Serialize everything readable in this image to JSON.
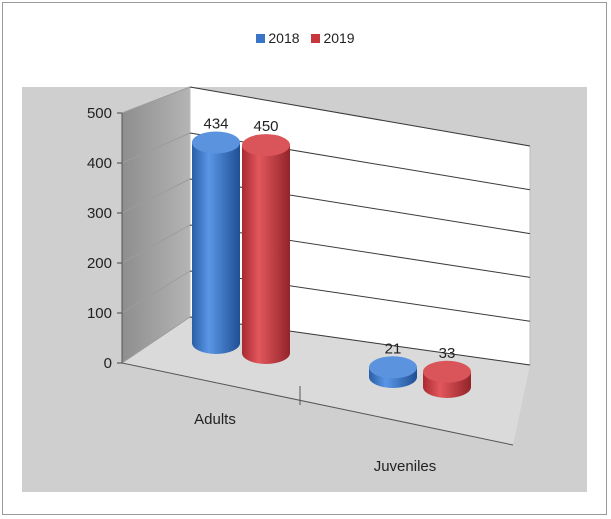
{
  "chart_data": {
    "type": "bar",
    "style": "3d-cylinder",
    "categories": [
      "Adults",
      "Juveniles"
    ],
    "series": [
      {
        "name": "2018",
        "values": [
          434,
          21
        ],
        "color": "#3a74c6"
      },
      {
        "name": "2019",
        "values": [
          450,
          33
        ],
        "color": "#c6363c"
      }
    ],
    "ylim": [
      0,
      500
    ],
    "yticks": [
      0,
      100,
      200,
      300,
      400,
      500
    ],
    "grid": true,
    "legend_position": "top",
    "data_labels": true
  }
}
